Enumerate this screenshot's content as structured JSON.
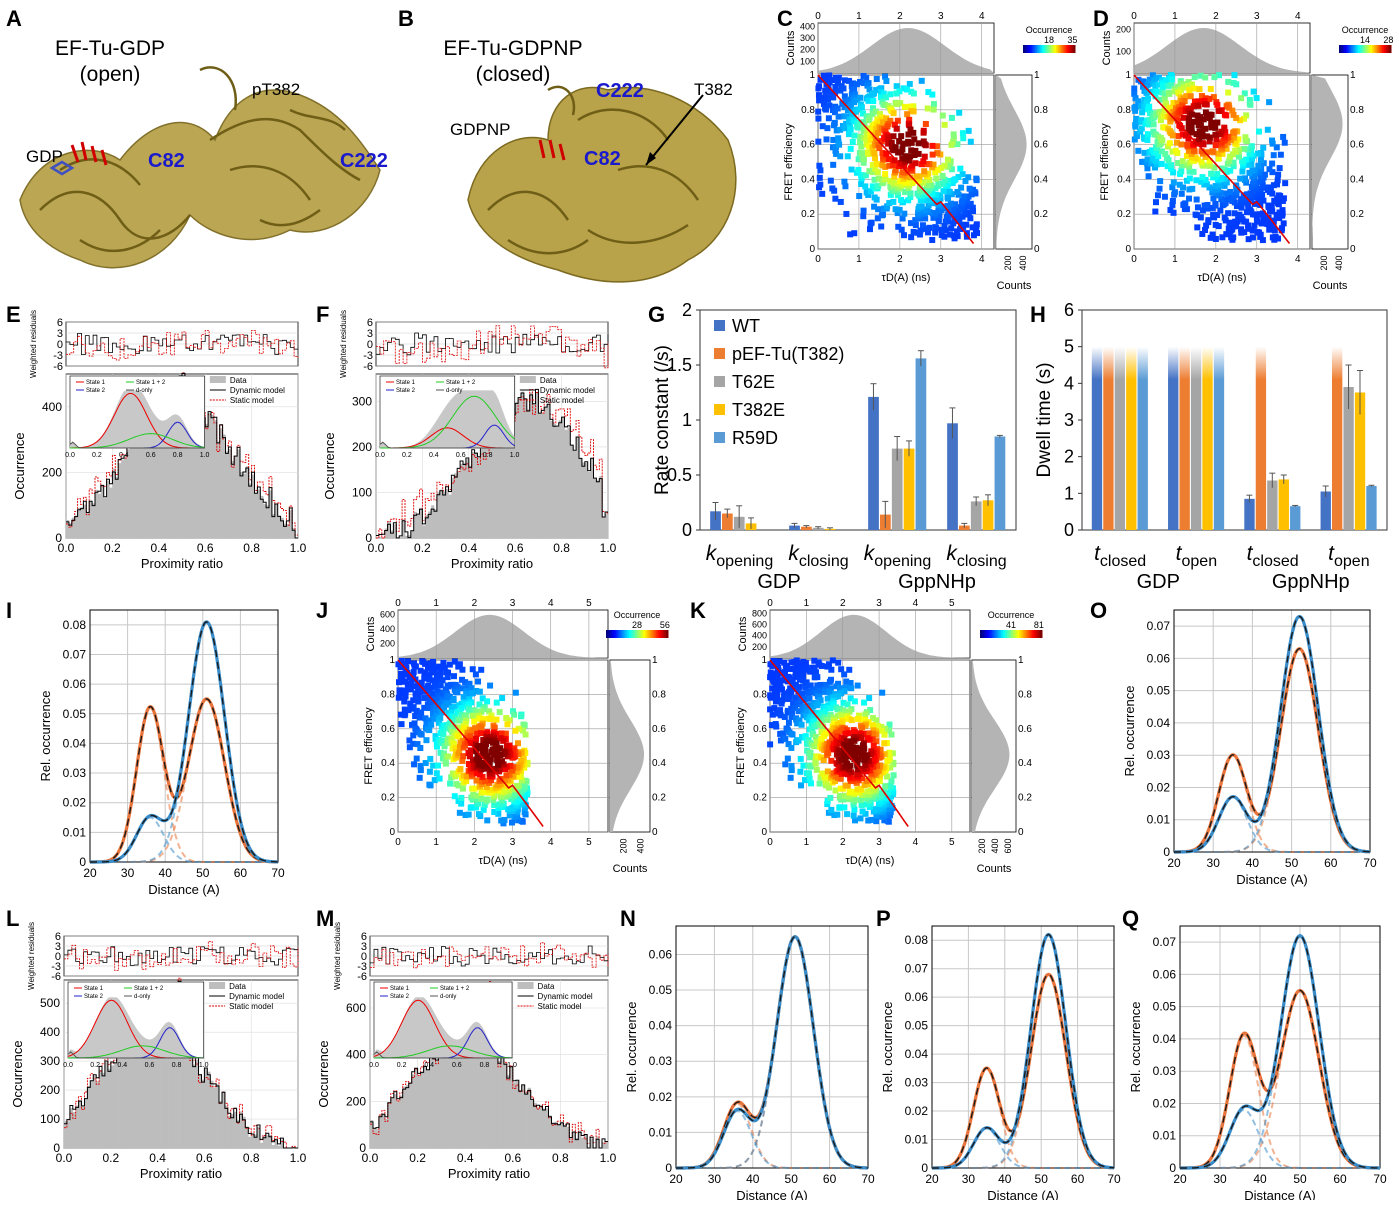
{
  "panels": {
    "A": {
      "label": "A",
      "title_line1": "EF-Tu-GDP",
      "title_line2": "(open)",
      "labels": {
        "gdp": "GDP",
        "c82": "C82",
        "c222": "C222",
        "pt382": "pT382"
      }
    },
    "B": {
      "label": "B",
      "title_line1": "EF-Tu-GDPNP",
      "title_line2": "(closed)",
      "labels": {
        "gdpnp": "GDPNP",
        "c82": "C82",
        "c222": "C222",
        "t382": "T382"
      }
    },
    "C": {
      "label": "C",
      "xlabel": "τD(A) (ns)",
      "ylabel": "FRET efficiency",
      "top_label": "Counts",
      "right_label": "Counts",
      "colorbar_title": "Occurrence",
      "colorbar_ticks": [
        "18",
        "35"
      ],
      "x_ticks": [
        "0",
        "1",
        "2",
        "3",
        "4"
      ],
      "y_ticks": [
        "0",
        "0.2",
        "0.4",
        "0.6",
        "0.8",
        "1"
      ],
      "top_y_ticks": [
        "100",
        "200",
        "300",
        "400"
      ],
      "right_x_ticks": [
        "200",
        "400"
      ]
    },
    "D": {
      "label": "D",
      "xlabel": "τD(A) (ns)",
      "ylabel": "FRET efficiency",
      "top_label": "Counts",
      "right_label": "Counts",
      "colorbar_title": "Occurrence",
      "colorbar_ticks": [
        "14",
        "28"
      ],
      "x_ticks": [
        "0",
        "1",
        "2",
        "3",
        "4"
      ],
      "y_ticks": [
        "0",
        "0.2",
        "0.4",
        "0.6",
        "0.8",
        "1"
      ],
      "top_y_ticks": [
        "100",
        "200"
      ],
      "right_x_ticks": [
        "200",
        "400"
      ]
    },
    "E": {
      "label": "E",
      "xlabel": "Proximity ratio",
      "ylabel": "Occurrence",
      "resid_label": "Weighted residuals",
      "x_ticks": [
        "0.0",
        "0.2",
        "0.4",
        "0.6",
        "0.8",
        "1.0"
      ],
      "y_ticks": [
        "0",
        "200",
        "400"
      ],
      "resid_ticks": [
        "6",
        "3",
        "0",
        "-3",
        "-6"
      ],
      "legend": [
        "Data",
        "Dynamic model",
        "Static model"
      ],
      "inset_legend": [
        "State 1",
        "State 2",
        "State 1 + 2",
        "d-only"
      ],
      "inset_ticks": [
        "0.0",
        "0.2",
        "0.4",
        "0.6",
        "0.8",
        "1.0"
      ]
    },
    "F": {
      "label": "F",
      "xlabel": "Proximity ratio",
      "ylabel": "Occurrence",
      "resid_label": "Weighted residuals",
      "x_ticks": [
        "0.0",
        "0.2",
        "0.4",
        "0.6",
        "0.8",
        "1.0"
      ],
      "y_ticks": [
        "0",
        "100",
        "200",
        "300"
      ],
      "resid_ticks": [
        "6",
        "3",
        "0",
        "-3",
        "-6"
      ],
      "legend": [
        "Data",
        "Dynamic model",
        "Static model"
      ],
      "inset_legend": [
        "State 1",
        "State 2",
        "State 1 + 2",
        "d-only"
      ],
      "inset_ticks": [
        "0.0",
        "0.2",
        "0.4",
        "0.6",
        "0.8",
        "1.0"
      ]
    },
    "I": {
      "label": "I",
      "xlabel": "Distance (A)",
      "ylabel": "Rel. occurrence",
      "x_ticks": [
        "20",
        "30",
        "40",
        "50",
        "60",
        "70"
      ],
      "y_ticks": [
        "0",
        "0.01",
        "0.02",
        "0.03",
        "0.04",
        "0.05",
        "0.06",
        "0.07",
        "0.08"
      ]
    },
    "O": {
      "label": "O",
      "xlabel": "Distance (A)",
      "ylabel": "Rel. occurrence",
      "x_ticks": [
        "20",
        "30",
        "40",
        "50",
        "60",
        "70"
      ],
      "y_ticks": [
        "0",
        "0.01",
        "0.02",
        "0.03",
        "0.04",
        "0.05",
        "0.06",
        "0.07"
      ]
    },
    "N": {
      "label": "N",
      "xlabel": "Distance (A)",
      "ylabel": "Rel. occurrence",
      "x_ticks": [
        "20",
        "30",
        "40",
        "50",
        "60",
        "70"
      ],
      "y_ticks": [
        "0",
        "0.01",
        "0.02",
        "0.03",
        "0.04",
        "0.05",
        "0.06"
      ]
    },
    "P": {
      "label": "P",
      "xlabel": "Distance (A)",
      "ylabel": "Rel. occurrence",
      "x_ticks": [
        "20",
        "30",
        "40",
        "50",
        "60",
        "70"
      ],
      "y_ticks": [
        "0",
        "0.01",
        "0.02",
        "0.03",
        "0.04",
        "0.05",
        "0.06",
        "0.07",
        "0.08"
      ]
    },
    "Q": {
      "label": "Q",
      "xlabel": "Distance (A)",
      "ylabel": "Rel. occurrence",
      "x_ticks": [
        "20",
        "30",
        "40",
        "50",
        "60",
        "70"
      ],
      "y_ticks": [
        "0",
        "0.01",
        "0.02",
        "0.03",
        "0.04",
        "0.05",
        "0.06",
        "0.07"
      ]
    },
    "J": {
      "label": "J",
      "xlabel": "τD(A) (ns)",
      "ylabel": "FRET efficiency",
      "top_label": "Counts",
      "right_label": "Counts",
      "colorbar_title": "Occurrence",
      "colorbar_ticks": [
        "28",
        "56"
      ],
      "x_ticks": [
        "0",
        "1",
        "2",
        "3",
        "4",
        "5"
      ],
      "y_ticks": [
        "0",
        "0.2",
        "0.4",
        "0.6",
        "0.8",
        "1"
      ],
      "top_y_ticks": [
        "200",
        "400",
        "600"
      ],
      "right_x_ticks": [
        "200",
        "400"
      ]
    },
    "K": {
      "label": "K",
      "xlabel": "τD(A) (ns)",
      "ylabel": "FRET efficiency",
      "top_label": "Counts",
      "right_label": "Counts",
      "colorbar_title": "Occurrence",
      "colorbar_ticks": [
        "41",
        "81"
      ],
      "x_ticks": [
        "0",
        "1",
        "2",
        "3",
        "4",
        "5"
      ],
      "y_ticks": [
        "0",
        "0.2",
        "0.4",
        "0.6",
        "0.8",
        "1"
      ],
      "top_y_ticks": [
        "200",
        "400",
        "600",
        "800"
      ],
      "right_x_ticks": [
        "200",
        "400",
        "600"
      ]
    },
    "L": {
      "label": "L",
      "xlabel": "Proximity ratio",
      "ylabel": "Occurrence",
      "resid_label": "Weighted residuals",
      "x_ticks": [
        "0.0",
        "0.2",
        "0.4",
        "0.6",
        "0.8",
        "1.0"
      ],
      "y_ticks": [
        "0",
        "100",
        "200",
        "300",
        "400",
        "500"
      ],
      "resid_ticks": [
        "6",
        "3",
        "0",
        "-3",
        "-6"
      ],
      "legend": [
        "Data",
        "Dynamic model",
        "Static model"
      ],
      "inset_legend": [
        "State 1",
        "State 2",
        "State 1 + 2",
        "d-only"
      ],
      "inset_ticks": [
        "0.0",
        "0.2",
        "0.4",
        "0.6",
        "0.8",
        "1.0"
      ]
    },
    "M": {
      "label": "M",
      "xlabel": "Proximity ratio",
      "ylabel": "Occurrence",
      "resid_label": "Weighted residuals",
      "x_ticks": [
        "0.0",
        "0.2",
        "0.4",
        "0.6",
        "0.8",
        "1.0"
      ],
      "y_ticks": [
        "0",
        "200",
        "400",
        "600"
      ],
      "resid_ticks": [
        "6",
        "3",
        "0",
        "-3",
        "-6"
      ],
      "legend": [
        "Data",
        "Dynamic model",
        "Static model"
      ],
      "inset_legend": [
        "State 1",
        "State 2",
        "State 1 + 2",
        "d-only"
      ],
      "inset_ticks": [
        "0.0",
        "0.2",
        "0.4",
        "0.6",
        "0.8",
        "1.0"
      ]
    },
    "G": {
      "label": "G",
      "ylabel": "Rate constant (/s)",
      "y_ticks": [
        "0",
        "0.5",
        "1",
        "1.5",
        "2"
      ],
      "groups": [
        {
          "k": "k",
          "sub": "opening"
        },
        {
          "k": "k",
          "sub": "closing"
        },
        {
          "k": "k",
          "sub": "opening"
        },
        {
          "k": "k",
          "sub": "closing"
        }
      ],
      "conditions": [
        "GDP",
        "GppNHp"
      ]
    },
    "H": {
      "label": "H",
      "ylabel": "Dwell time (s)",
      "y_ticks": [
        "0",
        "1",
        "2",
        "3",
        "4",
        "5",
        "6"
      ],
      "groups": [
        {
          "k": "t",
          "sub": "closed"
        },
        {
          "k": "t",
          "sub": "open"
        },
        {
          "k": "t",
          "sub": "closed"
        },
        {
          "k": "t",
          "sub": "open"
        }
      ],
      "conditions": [
        "GDP",
        "GppNHp"
      ]
    }
  },
  "colors": {
    "WT": "#4472c4",
    "pEF": "#ed7d31",
    "T62E": "#a5a5a5",
    "T382E": "#ffc000",
    "R59D": "#5b9bd5",
    "protein": "#b8a24a",
    "fit_red": "#e00000"
  },
  "chart_data": [
    {
      "panel": "G",
      "type": "bar",
      "ylim": [
        0,
        2
      ],
      "legend": [
        "WT",
        "pEF-Tu(T382)",
        "T62E",
        "T382E",
        "R59D"
      ],
      "series": [
        {
          "name": "WT",
          "values": [
            0.17,
            0.04,
            1.21,
            0.97
          ],
          "errors": [
            0.08,
            0.02,
            0.12,
            0.14
          ]
        },
        {
          "name": "pEF-Tu(T382)",
          "values": [
            0.15,
            0.03,
            0.14,
            0.04
          ],
          "errors": [
            0.04,
            0.01,
            0.12,
            0.02
          ]
        },
        {
          "name": "T62E",
          "values": [
            0.12,
            0.02,
            0.74,
            0.26
          ],
          "errors": [
            0.1,
            0.01,
            0.11,
            0.04
          ]
        },
        {
          "name": "T382E",
          "values": [
            0.06,
            0.01,
            0.74,
            0.27
          ],
          "errors": [
            0.05,
            0.01,
            0.07,
            0.05
          ]
        },
        {
          "name": "R59D",
          "values": [
            0.0,
            0.0,
            1.56,
            0.85
          ],
          "errors": [
            0,
            0,
            0.07,
            0.01
          ]
        }
      ]
    },
    {
      "panel": "H",
      "type": "bar",
      "ylim": [
        0,
        6
      ],
      "series": [
        {
          "name": "WT",
          "values": [
            5,
            5,
            0.85,
            1.05
          ],
          "errors": [
            0,
            0,
            0.1,
            0.15
          ]
        },
        {
          "name": "pEF-Tu(T382)",
          "values": [
            5,
            5,
            5,
            5
          ],
          "errors": [
            0,
            0,
            0,
            0
          ]
        },
        {
          "name": "T62E",
          "values": [
            5,
            5,
            1.35,
            3.9
          ],
          "errors": [
            0,
            0,
            0.2,
            0.6
          ]
        },
        {
          "name": "T382E",
          "values": [
            5,
            5,
            1.38,
            3.75
          ],
          "errors": [
            0,
            0,
            0.12,
            0.6
          ]
        },
        {
          "name": "R59D",
          "values": [
            5,
            5,
            0.65,
            1.2
          ],
          "errors": [
            0,
            0,
            0.02,
            0.02
          ]
        }
      ]
    },
    {
      "panel": "I",
      "type": "line",
      "xlim": [
        20,
        70
      ],
      "ylim": [
        0,
        0.085
      ],
      "series": [
        {
          "name": "orange",
          "peaks": [
            [
              36,
              0.052,
              3.6
            ],
            [
              51,
              0.055,
              4.8
            ]
          ]
        },
        {
          "name": "blue",
          "peaks": [
            [
              36,
              0.015,
              3.6
            ],
            [
              51,
              0.081,
              4.8
            ]
          ]
        }
      ]
    },
    {
      "panel": "O",
      "type": "line",
      "xlim": [
        20,
        70
      ],
      "ylim": [
        0,
        0.075
      ],
      "series": [
        {
          "name": "orange",
          "peaks": [
            [
              35,
              0.03,
              3.6
            ],
            [
              52,
              0.063,
              4.8
            ]
          ]
        },
        {
          "name": "blue",
          "peaks": [
            [
              35,
              0.017,
              3.6
            ],
            [
              52,
              0.073,
              4.8
            ]
          ]
        }
      ]
    },
    {
      "panel": "N",
      "type": "line",
      "xlim": [
        20,
        70
      ],
      "ylim": [
        0,
        0.068
      ],
      "series": [
        {
          "name": "orange",
          "peaks": [
            [
              36,
              0.018,
              3.6
            ],
            [
              51,
              0.065,
              4.8
            ]
          ]
        },
        {
          "name": "blue",
          "peaks": [
            [
              36,
              0.016,
              3.6
            ],
            [
              51,
              0.065,
              4.8
            ]
          ]
        }
      ]
    },
    {
      "panel": "P",
      "type": "line",
      "xlim": [
        20,
        70
      ],
      "ylim": [
        0,
        0.085
      ],
      "series": [
        {
          "name": "orange",
          "peaks": [
            [
              35,
              0.035,
              3.6
            ],
            [
              52,
              0.068,
              4.8
            ]
          ]
        },
        {
          "name": "blue",
          "peaks": [
            [
              35,
              0.014,
              3.6
            ],
            [
              52,
              0.082,
              4.8
            ]
          ]
        }
      ]
    },
    {
      "panel": "Q",
      "type": "line",
      "xlim": [
        20,
        70
      ],
      "ylim": [
        0,
        0.075
      ],
      "series": [
        {
          "name": "orange",
          "peaks": [
            [
              36,
              0.041,
              3.6
            ],
            [
              50,
              0.055,
              4.8
            ]
          ]
        },
        {
          "name": "blue",
          "peaks": [
            [
              36,
              0.018,
              3.6
            ],
            [
              50,
              0.072,
              4.8
            ]
          ]
        }
      ]
    }
  ]
}
